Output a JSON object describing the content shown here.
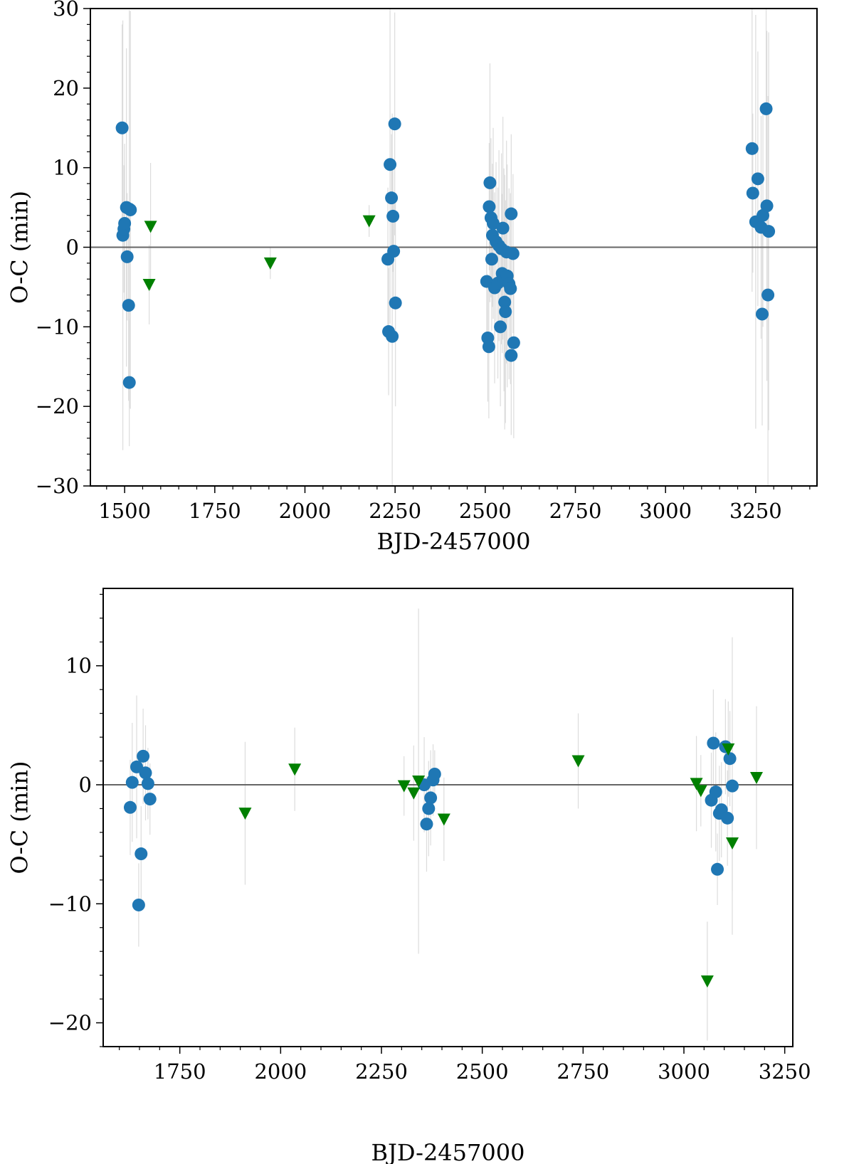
{
  "chart_data": [
    {
      "type": "scatter",
      "title": "",
      "xlabel": "BJD-2457000",
      "ylabel": "O-C (min)",
      "xlim": [
        1405,
        3420
      ],
      "ylim": [
        -30,
        30
      ],
      "xticks": [
        1500,
        1750,
        2000,
        2250,
        2500,
        2750,
        3000,
        3250
      ],
      "xtick_labels": [
        "1500",
        "1750",
        "2000",
        "2250",
        "2500",
        "2750",
        "3000",
        "3250"
      ],
      "yticks": [
        -30,
        -20,
        -10,
        0,
        10,
        20,
        30
      ],
      "ytick_labels": [
        "−30",
        "−20",
        "−10",
        "0",
        "10",
        "20",
        "30"
      ],
      "reference_line": 0,
      "colors": {
        "circle": "#1f77b4",
        "triangle": "#008000",
        "errorbar": "#dcdcdc",
        "zero_line": "#666666"
      },
      "series": [
        {
          "name": "circles",
          "marker": "circle",
          "points": [
            {
              "x": 1493,
              "y": 15.0,
              "err": 13
            },
            {
              "x": 1495,
              "y": 1.5,
              "err": 27
            },
            {
              "x": 1498,
              "y": 2.3,
              "err": 8
            },
            {
              "x": 1500,
              "y": 3.0,
              "err": 10
            },
            {
              "x": 1505,
              "y": 5.0,
              "err": 20
            },
            {
              "x": 1507,
              "y": -1.2,
              "err": 8
            },
            {
              "x": 1511,
              "y": -7.3,
              "err": 12
            },
            {
              "x": 1513,
              "y": 4.8,
              "err": 25
            },
            {
              "x": 1516,
              "y": 4.7,
              "err": 25
            },
            {
              "x": 1513,
              "y": -17.0,
              "err": 8
            },
            {
              "x": 2230,
              "y": -1.5,
              "err": 9
            },
            {
              "x": 2232,
              "y": -10.6,
              "err": 8
            },
            {
              "x": 2236,
              "y": 10.4,
              "err": 20
            },
            {
              "x": 2240,
              "y": 6.2,
              "err": 8
            },
            {
              "x": 2242,
              "y": -11.2,
              "err": 28
            },
            {
              "x": 2244,
              "y": 3.9,
              "err": 7
            },
            {
              "x": 2246,
              "y": -0.5,
              "err": 7
            },
            {
              "x": 2249,
              "y": 15.5,
              "err": 14
            },
            {
              "x": 2251,
              "y": -7.0,
              "err": 13
            },
            {
              "x": 2504,
              "y": -4.3,
              "err": 7
            },
            {
              "x": 2507,
              "y": -11.4,
              "err": 8
            },
            {
              "x": 2510,
              "y": -12.5,
              "err": 9
            },
            {
              "x": 2511,
              "y": 5.1,
              "err": 8
            },
            {
              "x": 2513,
              "y": 8.1,
              "err": 15
            },
            {
              "x": 2516,
              "y": 3.7,
              "err": 10
            },
            {
              "x": 2518,
              "y": -1.5,
              "err": 9
            },
            {
              "x": 2520,
              "y": 1.5,
              "err": 9
            },
            {
              "x": 2522,
              "y": 3.0,
              "err": 12
            },
            {
              "x": 2526,
              "y": -5.1,
              "err": 12
            },
            {
              "x": 2530,
              "y": 0.7,
              "err": 10
            },
            {
              "x": 2535,
              "y": -4.5,
              "err": 12
            },
            {
              "x": 2538,
              "y": 0.2,
              "err": 12
            },
            {
              "x": 2542,
              "y": -10.0,
              "err": 10
            },
            {
              "x": 2545,
              "y": -0.2,
              "err": 12
            },
            {
              "x": 2547,
              "y": -3.3,
              "err": 10
            },
            {
              "x": 2549,
              "y": 2.4,
              "err": 14
            },
            {
              "x": 2552,
              "y": -4.1,
              "err": 14
            },
            {
              "x": 2554,
              "y": -6.9,
              "err": 16
            },
            {
              "x": 2556,
              "y": -8.1,
              "err": 14
            },
            {
              "x": 2559,
              "y": -0.6,
              "err": 14
            },
            {
              "x": 2561,
              "y": -3.6,
              "err": 14
            },
            {
              "x": 2566,
              "y": -4.6,
              "err": 12
            },
            {
              "x": 2570,
              "y": -5.2,
              "err": 12
            },
            {
              "x": 2572,
              "y": -13.6,
              "err": 10
            },
            {
              "x": 2572,
              "y": 4.2,
              "err": 10
            },
            {
              "x": 2577,
              "y": -0.8,
              "err": 10
            },
            {
              "x": 2579,
              "y": -12.0,
              "err": 12
            },
            {
              "x": 3240,
              "y": 12.4,
              "err": 18
            },
            {
              "x": 3242,
              "y": 6.8,
              "err": 10
            },
            {
              "x": 3250,
              "y": 3.2,
              "err": 26
            },
            {
              "x": 3256,
              "y": 8.6,
              "err": 16
            },
            {
              "x": 3265,
              "y": 2.5,
              "err": 14
            },
            {
              "x": 3268,
              "y": -8.4,
              "err": 14
            },
            {
              "x": 3270,
              "y": 4.0,
              "err": 14
            },
            {
              "x": 3279,
              "y": 17.4,
              "err": 13
            },
            {
              "x": 3281,
              "y": 5.2,
              "err": 22
            },
            {
              "x": 3284,
              "y": -6.0,
              "err": 25
            },
            {
              "x": 3286,
              "y": 2.0,
              "err": 25
            }
          ]
        },
        {
          "name": "triangles",
          "marker": "triangle-down",
          "points": [
            {
              "x": 1572,
              "y": 2.6,
              "err": 8
            },
            {
              "x": 1568,
              "y": -4.7,
              "err": 5
            },
            {
              "x": 1904,
              "y": -2.0,
              "err": 2
            },
            {
              "x": 2178,
              "y": 3.3,
              "err": 2
            }
          ]
        }
      ]
    },
    {
      "type": "scatter",
      "title": "",
      "xlabel": "BJD-2457000",
      "ylabel": "O-C (min)",
      "xlim": [
        1560,
        3270
      ],
      "ylim": [
        -22,
        16.5
      ],
      "xticks": [
        1750,
        2000,
        2250,
        2500,
        2750,
        3000,
        3250
      ],
      "xtick_labels": [
        "1750",
        "2000",
        "2250",
        "2500",
        "2750",
        "3000",
        "3250"
      ],
      "yticks": [
        -20,
        -10,
        0,
        10
      ],
      "ytick_labels": [
        "−20",
        "−10",
        "0",
        "10"
      ],
      "reference_line": 0,
      "colors": {
        "circle": "#1f77b4",
        "triangle": "#008000",
        "errorbar": "#dcdcdc",
        "zero_line": "#666666"
      },
      "series": [
        {
          "name": "circles",
          "marker": "circle",
          "points": [
            {
              "x": 1627,
              "y": -1.9,
              "err": 4
            },
            {
              "x": 1632,
              "y": 0.2,
              "err": 5
            },
            {
              "x": 1643,
              "y": 1.5,
              "err": 6
            },
            {
              "x": 1648,
              "y": -10.1,
              "err": 3.5
            },
            {
              "x": 1654,
              "y": -5.8,
              "err": 4
            },
            {
              "x": 1659,
              "y": 2.4,
              "err": 4
            },
            {
              "x": 1665,
              "y": 1.0,
              "err": 4
            },
            {
              "x": 1671,
              "y": 0.1,
              "err": 3
            },
            {
              "x": 1676,
              "y": -1.2,
              "err": 3
            },
            {
              "x": 2356,
              "y": 0.0,
              "err": 4
            },
            {
              "x": 2362,
              "y": -3.3,
              "err": 4
            },
            {
              "x": 2367,
              "y": -2.0,
              "err": 4
            },
            {
              "x": 2372,
              "y": -1.1,
              "err": 4
            },
            {
              "x": 2378,
              "y": 0.4,
              "err": 3
            },
            {
              "x": 2382,
              "y": 0.9,
              "err": 2
            },
            {
              "x": 3068,
              "y": -1.3,
              "err": 4
            },
            {
              "x": 3073,
              "y": 3.5,
              "err": 4.5
            },
            {
              "x": 3079,
              "y": -0.6,
              "err": 5
            },
            {
              "x": 3083,
              "y": -7.1,
              "err": 3
            },
            {
              "x": 3088,
              "y": -2.4,
              "err": 4
            },
            {
              "x": 3093,
              "y": -2.1,
              "err": 4
            },
            {
              "x": 3103,
              "y": 3.2,
              "err": 4
            },
            {
              "x": 3108,
              "y": -2.8,
              "err": 4
            },
            {
              "x": 3114,
              "y": 2.2,
              "err": 4
            },
            {
              "x": 3120,
              "y": -0.1,
              "err": 12.5
            }
          ]
        },
        {
          "name": "triangles",
          "marker": "triangle-down",
          "points": [
            {
              "x": 1912,
              "y": -2.4,
              "err": 6
            },
            {
              "x": 2035,
              "y": 1.3,
              "err": 3.5
            },
            {
              "x": 2306,
              "y": -0.1,
              "err": 2.5
            },
            {
              "x": 2330,
              "y": -0.7,
              "err": 4
            },
            {
              "x": 2342,
              "y": 0.3,
              "err": 14.5
            },
            {
              "x": 2405,
              "y": -2.9,
              "err": 3.5
            },
            {
              "x": 2738,
              "y": 2.0,
              "err": 4
            },
            {
              "x": 3031,
              "y": 0.1,
              "err": 4
            },
            {
              "x": 3042,
              "y": -0.5,
              "err": 3
            },
            {
              "x": 3058,
              "y": -16.5,
              "err": 5
            },
            {
              "x": 3110,
              "y": 3.0,
              "err": 4
            },
            {
              "x": 3120,
              "y": -4.9,
              "err": 4
            },
            {
              "x": 3180,
              "y": 0.6,
              "err": 6
            }
          ]
        }
      ]
    }
  ]
}
